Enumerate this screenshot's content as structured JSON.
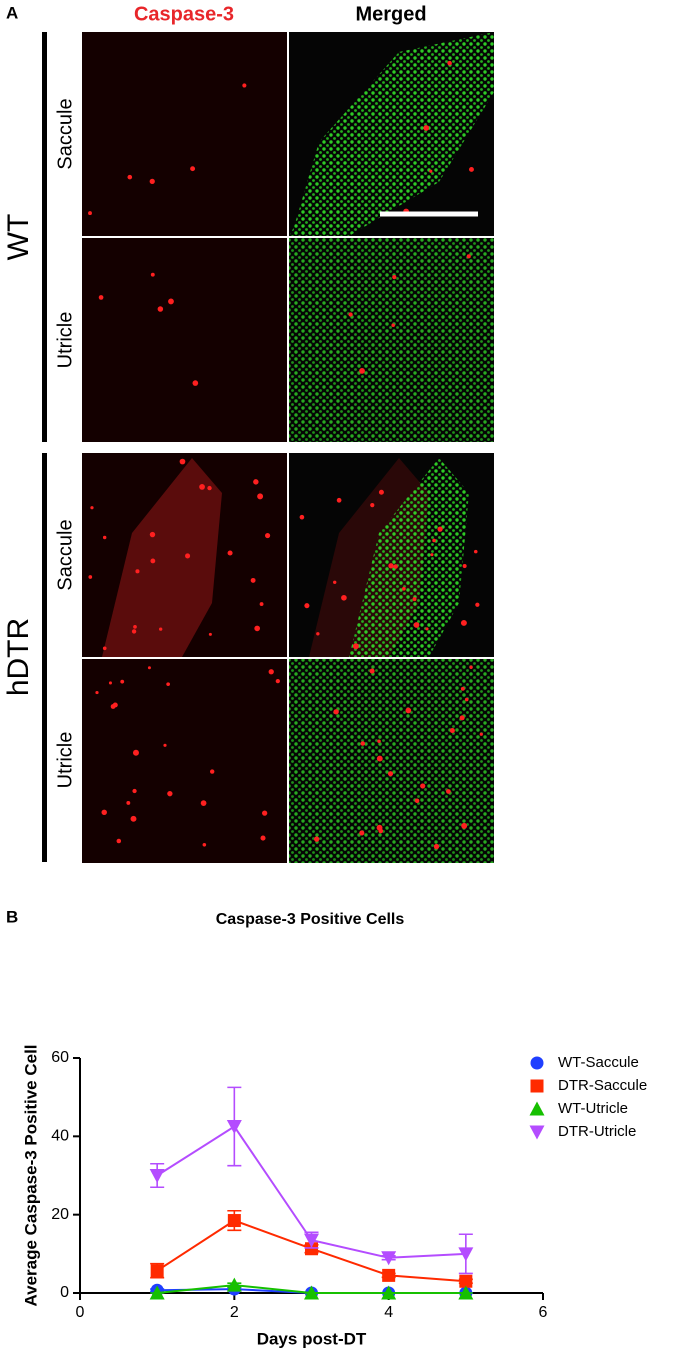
{
  "panel_a": {
    "label": "A",
    "columns": [
      "Caspase-3",
      "Merged"
    ],
    "groups": [
      {
        "name": "WT",
        "rows": [
          "Saccule",
          "Utricle"
        ]
      },
      {
        "name": "hDTR",
        "rows": [
          "Saccule",
          "Utricle"
        ]
      }
    ]
  },
  "chart_data": {
    "type": "line",
    "panel_label": "B",
    "title": "Caspase-3 Positive Cells",
    "x_label": "Days post-DT",
    "y_label": "Average Caspase-3 Positive Cell",
    "x": [
      1,
      2,
      3,
      4,
      5
    ],
    "series": [
      {
        "name": "WT-Saccule",
        "color": "#1f3fff",
        "marker": "circle",
        "values": [
          0.7,
          1,
          0,
          0,
          0
        ],
        "errors": [
          0.3,
          0.4,
          0,
          0,
          0
        ]
      },
      {
        "name": "DTR-Saccule",
        "color": "#ff2a00",
        "marker": "square",
        "values": [
          5.7,
          18.5,
          11.3,
          4.5,
          3
        ],
        "errors": [
          1.8,
          2.5,
          1,
          0.5,
          0.5
        ]
      },
      {
        "name": "WT-Utricle",
        "color": "#16c000",
        "marker": "triangle-up",
        "values": [
          0,
          2,
          0,
          0,
          0
        ],
        "errors": [
          0,
          0.5,
          0,
          0,
          0
        ]
      },
      {
        "name": "DTR-Utricle",
        "color": "#b44cff",
        "marker": "triangle-down",
        "values": [
          30,
          42.5,
          13.5,
          9,
          10
        ],
        "errors": [
          3,
          10,
          2,
          0.5,
          5
        ]
      }
    ],
    "xlim": [
      0,
      6
    ],
    "xticks": [
      0,
      2,
      4,
      6
    ],
    "ylim": [
      0,
      60
    ],
    "yticks": [
      0,
      20,
      40,
      60
    ],
    "legend": "top-right"
  }
}
